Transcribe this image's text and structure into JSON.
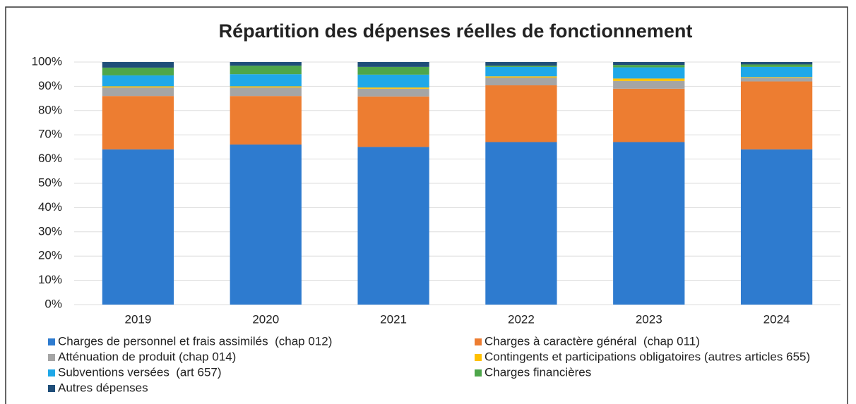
{
  "chart_data": {
    "type": "stacked_bar",
    "title": "Répartition des dépenses réelles de fonctionnement",
    "categories": [
      "2019",
      "2020",
      "2021",
      "2022",
      "2023",
      "2024"
    ],
    "series": [
      {
        "name": "Charges de personnel et frais assimilés  (chap 012)",
        "color": "#2e7bcf",
        "values": [
          64,
          66,
          65,
          67,
          67,
          64
        ]
      },
      {
        "name": "Charges à caractère général  (chap 011)",
        "color": "#ed7d31",
        "values": [
          22,
          20,
          20.8,
          23.4,
          22,
          28
        ]
      },
      {
        "name": "Atténuation de produit (chap 014)",
        "color": "#a5a5a5",
        "values": [
          3.5,
          3.5,
          3.2,
          3.2,
          3.2,
          1.5
        ]
      },
      {
        "name": "Contingents et participations obligatoires (autres articles 655)",
        "color": "#ffc000",
        "values": [
          0.5,
          0.5,
          0.5,
          0.5,
          1,
          0.3
        ]
      },
      {
        "name": "Subventions versées  (art 657)",
        "color": "#1fa8e8",
        "values": [
          4.5,
          5,
          5.3,
          3.9,
          4.6,
          4.2
        ]
      },
      {
        "name": "Charges financières",
        "color": "#4ea64a",
        "values": [
          3.2,
          3.5,
          3.2,
          0.5,
          1,
          1
        ]
      },
      {
        "name": "Autres dépenses",
        "color": "#1f4e79",
        "values": [
          2.3,
          1.5,
          2,
          1.5,
          1.2,
          1
        ]
      }
    ],
    "ylim": [
      0,
      100
    ],
    "yticks": [
      {
        "value": 0,
        "label": "0%"
      },
      {
        "value": 10,
        "label": "10%"
      },
      {
        "value": 20,
        "label": "20%"
      },
      {
        "value": 30,
        "label": "30%"
      },
      {
        "value": 40,
        "label": "40%"
      },
      {
        "value": 50,
        "label": "50%"
      },
      {
        "value": 60,
        "label": "60%"
      },
      {
        "value": 70,
        "label": "70%"
      },
      {
        "value": 80,
        "label": "80%"
      },
      {
        "value": 90,
        "label": "90%"
      },
      {
        "value": 100,
        "label": "100%"
      }
    ],
    "grid": true
  }
}
